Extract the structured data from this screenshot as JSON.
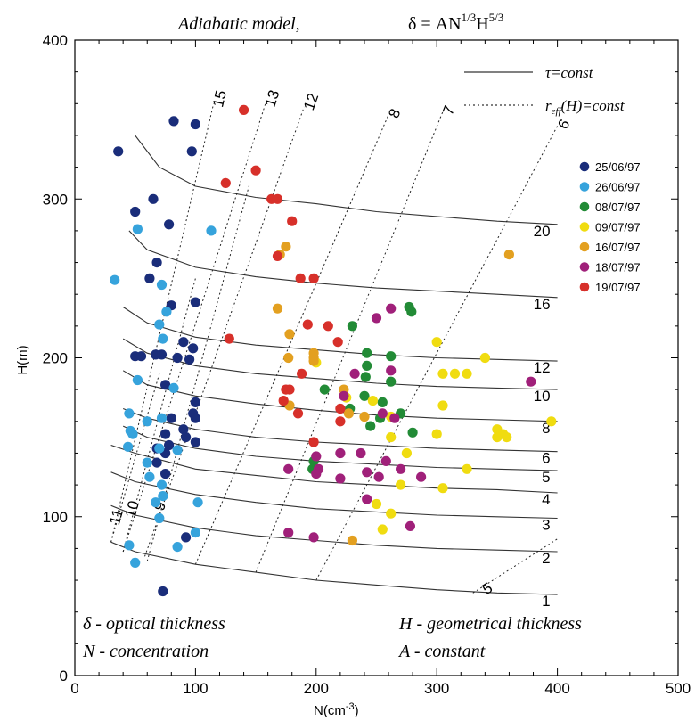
{
  "chart_data": {
    "type": "scatter",
    "title_text": "Adiabatic model,",
    "title_formula": "δ  =  AN",
    "title_exp1": "1/3",
    "title_mid": "H",
    "title_exp2": "5/3",
    "xlabel": "N(cm",
    "xlabel_sup": "-3",
    "xlabel_end": ")",
    "ylabel": "H(m)",
    "xlim": [
      0,
      500
    ],
    "ylim": [
      0,
      400
    ],
    "xticks": [
      0,
      100,
      200,
      300,
      400,
      500
    ],
    "yticks": [
      0,
      100,
      200,
      300,
      400
    ],
    "grid": false,
    "legend_position": "right",
    "line_key": {
      "solid": "τ=const",
      "dotted_pre": "r",
      "dotted_sub": "eff",
      "dotted_post": "(H)=const"
    },
    "tau_curves": [
      {
        "label": "1",
        "points": [
          [
            30,
            84
          ],
          [
            50,
            78
          ],
          [
            100,
            70
          ],
          [
            150,
            65
          ],
          [
            200,
            60
          ],
          [
            250,
            57
          ],
          [
            300,
            54
          ],
          [
            350,
            52
          ],
          [
            400,
            51
          ]
        ]
      },
      {
        "label": "2",
        "points": [
          [
            30,
            107
          ],
          [
            50,
            101
          ],
          [
            100,
            93
          ],
          [
            150,
            88
          ],
          [
            200,
            85
          ],
          [
            250,
            82
          ],
          [
            300,
            80
          ],
          [
            350,
            79
          ],
          [
            400,
            78
          ]
        ]
      },
      {
        "label": "3",
        "points": [
          [
            30,
            128
          ],
          [
            50,
            122
          ],
          [
            100,
            114
          ],
          [
            150,
            109
          ],
          [
            200,
            105
          ],
          [
            250,
            103
          ],
          [
            300,
            101
          ],
          [
            350,
            100
          ],
          [
            400,
            99
          ]
        ]
      },
      {
        "label": "4",
        "points": [
          [
            30,
            145
          ],
          [
            50,
            140
          ],
          [
            100,
            130
          ],
          [
            150,
            126
          ],
          [
            200,
            122
          ],
          [
            250,
            120
          ],
          [
            300,
            118
          ],
          [
            350,
            117
          ],
          [
            400,
            115
          ]
        ]
      },
      {
        "label": "5",
        "points": [
          [
            40,
            157
          ],
          [
            60,
            150
          ],
          [
            100,
            143
          ],
          [
            150,
            138
          ],
          [
            200,
            135
          ],
          [
            250,
            133
          ],
          [
            300,
            131
          ],
          [
            350,
            130
          ],
          [
            400,
            129
          ]
        ]
      },
      {
        "label": "6",
        "points": [
          [
            40,
            168
          ],
          [
            60,
            162
          ],
          [
            100,
            155
          ],
          [
            150,
            150
          ],
          [
            200,
            147
          ],
          [
            250,
            145
          ],
          [
            300,
            143
          ],
          [
            350,
            142
          ],
          [
            400,
            141
          ]
        ]
      },
      {
        "label": "8",
        "points": [
          [
            40,
            192
          ],
          [
            60,
            183
          ],
          [
            100,
            176
          ],
          [
            150,
            171
          ],
          [
            200,
            167
          ],
          [
            250,
            164
          ],
          [
            300,
            162
          ],
          [
            350,
            161
          ],
          [
            400,
            160
          ]
        ]
      },
      {
        "label": "10",
        "points": [
          [
            40,
            212
          ],
          [
            60,
            203
          ],
          [
            100,
            195
          ],
          [
            150,
            190
          ],
          [
            200,
            187
          ],
          [
            250,
            184
          ],
          [
            300,
            182
          ],
          [
            350,
            181
          ],
          [
            400,
            180
          ]
        ]
      },
      {
        "label": "12",
        "points": [
          [
            40,
            232
          ],
          [
            60,
            222
          ],
          [
            100,
            213
          ],
          [
            150,
            208
          ],
          [
            200,
            205
          ],
          [
            250,
            202
          ],
          [
            300,
            200
          ],
          [
            350,
            199
          ],
          [
            400,
            198
          ]
        ]
      },
      {
        "label": "16",
        "points": [
          [
            45,
            280
          ],
          [
            60,
            268
          ],
          [
            100,
            257
          ],
          [
            150,
            251
          ],
          [
            200,
            247
          ],
          [
            250,
            244
          ],
          [
            300,
            242
          ],
          [
            350,
            240
          ],
          [
            400,
            238
          ]
        ]
      },
      {
        "label": "20",
        "points": [
          [
            50,
            340
          ],
          [
            70,
            320
          ],
          [
            100,
            308
          ],
          [
            150,
            301
          ],
          [
            200,
            297
          ],
          [
            250,
            292
          ],
          [
            300,
            289
          ],
          [
            350,
            286
          ],
          [
            400,
            284
          ]
        ]
      }
    ],
    "reff_lines": [
      {
        "label": "15",
        "points": [
          [
            30,
            84
          ],
          [
            115,
            360
          ]
        ]
      },
      {
        "label": "13",
        "points": [
          [
            40,
            78
          ],
          [
            158,
            360
          ]
        ]
      },
      {
        "label": "12",
        "points": [
          [
            58,
            75
          ],
          [
            190,
            358
          ]
        ]
      },
      {
        "label": "11",
        "points": [
          [
            30,
            84
          ],
          [
            70,
            190
          ]
        ]
      },
      {
        "label": "10",
        "points": [
          [
            40,
            78
          ],
          [
            100,
            250
          ]
        ]
      },
      {
        "label": "9",
        "points": [
          [
            60,
            72
          ],
          [
            145,
            310
          ]
        ]
      },
      {
        "label": "8",
        "points": [
          [
            100,
            70
          ],
          [
            260,
            353
          ]
        ]
      },
      {
        "label": "7",
        "points": [
          [
            150,
            65
          ],
          [
            305,
            355
          ]
        ]
      },
      {
        "label": "6",
        "points": [
          [
            200,
            60
          ],
          [
            400,
            346
          ]
        ]
      },
      {
        "label": "5",
        "points": [
          [
            330,
            52
          ],
          [
            400,
            86
          ]
        ]
      }
    ],
    "series": [
      {
        "name": "25/06/97",
        "color": "#1a2d7a",
        "points": [
          [
            36,
            330
          ],
          [
            50,
            292
          ],
          [
            65,
            300
          ],
          [
            68,
            260
          ],
          [
            62,
            250
          ],
          [
            80,
            233
          ],
          [
            78,
            284
          ],
          [
            82,
            349
          ],
          [
            100,
            347
          ],
          [
            97,
            330
          ],
          [
            50,
            201
          ],
          [
            55,
            201
          ],
          [
            67,
            202
          ],
          [
            72,
            202
          ],
          [
            90,
            210
          ],
          [
            85,
            200
          ],
          [
            100,
            235
          ],
          [
            98,
            206
          ],
          [
            95,
            199
          ],
          [
            75,
            183
          ],
          [
            100,
            172
          ],
          [
            98,
            165
          ],
          [
            100,
            162
          ],
          [
            80,
            162
          ],
          [
            75,
            152
          ],
          [
            90,
            155
          ],
          [
            100,
            147
          ],
          [
            92,
            150
          ],
          [
            78,
            145
          ],
          [
            68,
            143
          ],
          [
            75,
            140
          ],
          [
            68,
            134
          ],
          [
            75,
            127
          ],
          [
            92,
            87
          ],
          [
            73,
            53
          ]
        ]
      },
      {
        "name": "26/06/97",
        "color": "#36a3dc",
        "points": [
          [
            52,
            281
          ],
          [
            113,
            280
          ],
          [
            33,
            249
          ],
          [
            72,
            246
          ],
          [
            76,
            229
          ],
          [
            70,
            221
          ],
          [
            73,
            212
          ],
          [
            52,
            186
          ],
          [
            82,
            181
          ],
          [
            45,
            165
          ],
          [
            72,
            162
          ],
          [
            60,
            160
          ],
          [
            46,
            154
          ],
          [
            48,
            152
          ],
          [
            70,
            143
          ],
          [
            44,
            144
          ],
          [
            85,
            142
          ],
          [
            60,
            134
          ],
          [
            72,
            120
          ],
          [
            67,
            109
          ],
          [
            73,
            113
          ],
          [
            62,
            125
          ],
          [
            70,
            99
          ],
          [
            100,
            90
          ],
          [
            85,
            81
          ],
          [
            45,
            82
          ],
          [
            50,
            71
          ],
          [
            102,
            109
          ]
        ]
      },
      {
        "name": "08/07/97",
        "color": "#228b36",
        "points": [
          [
            230,
            220
          ],
          [
            277,
            232
          ],
          [
            279,
            229
          ],
          [
            242,
            203
          ],
          [
            242,
            195
          ],
          [
            262,
            201
          ],
          [
            241,
            188
          ],
          [
            262,
            185
          ],
          [
            207,
            180
          ],
          [
            228,
            168
          ],
          [
            240,
            176
          ],
          [
            255,
            172
          ],
          [
            270,
            165
          ],
          [
            253,
            162
          ],
          [
            245,
            157
          ],
          [
            280,
            153
          ],
          [
            198,
            135
          ],
          [
            197,
            130
          ]
        ]
      },
      {
        "name": "09/07/97",
        "color": "#f0dc10",
        "points": [
          [
            300,
            210
          ],
          [
            340,
            200
          ],
          [
            305,
            190
          ],
          [
            315,
            190
          ],
          [
            325,
            190
          ],
          [
            305,
            170
          ],
          [
            200,
            197
          ],
          [
            225,
            175
          ],
          [
            247,
            173
          ],
          [
            262,
            163
          ],
          [
            262,
            150
          ],
          [
            275,
            140
          ],
          [
            300,
            152
          ],
          [
            350,
            155
          ],
          [
            355,
            152
          ],
          [
            350,
            150
          ],
          [
            358,
            150
          ],
          [
            395,
            160
          ],
          [
            325,
            130
          ],
          [
            305,
            118
          ],
          [
            270,
            120
          ],
          [
            250,
            108
          ],
          [
            262,
            102
          ],
          [
            255,
            92
          ]
        ]
      },
      {
        "name": "16/07/97",
        "color": "#e3a020",
        "points": [
          [
            360,
            265
          ],
          [
            175,
            270
          ],
          [
            170,
            265
          ],
          [
            168,
            231
          ],
          [
            178,
            215
          ],
          [
            198,
            203
          ],
          [
            198,
            200
          ],
          [
            198,
            198
          ],
          [
            177,
            200
          ],
          [
            223,
            180
          ],
          [
            227,
            165
          ],
          [
            240,
            163
          ],
          [
            178,
            170
          ],
          [
            230,
            85
          ]
        ]
      },
      {
        "name": "18/07/97",
        "color": "#a0207a",
        "points": [
          [
            262,
            231
          ],
          [
            250,
            225
          ],
          [
            232,
            190
          ],
          [
            262,
            192
          ],
          [
            378,
            185
          ],
          [
            255,
            165
          ],
          [
            265,
            162
          ],
          [
            223,
            176
          ],
          [
            200,
            138
          ],
          [
            220,
            140
          ],
          [
            237,
            140
          ],
          [
            258,
            135
          ],
          [
            177,
            130
          ],
          [
            200,
            127
          ],
          [
            242,
            128
          ],
          [
            252,
            125
          ],
          [
            270,
            130
          ],
          [
            287,
            125
          ],
          [
            202,
            130
          ],
          [
            220,
            124
          ],
          [
            242,
            111
          ],
          [
            177,
            90
          ],
          [
            198,
            87
          ],
          [
            278,
            94
          ]
        ]
      },
      {
        "name": "19/07/97",
        "color": "#d7302a",
        "points": [
          [
            140,
            356
          ],
          [
            150,
            318
          ],
          [
            125,
            310
          ],
          [
            163,
            300
          ],
          [
            168,
            300
          ],
          [
            180,
            286
          ],
          [
            168,
            264
          ],
          [
            187,
            250
          ],
          [
            198,
            250
          ],
          [
            193,
            221
          ],
          [
            210,
            220
          ],
          [
            128,
            212
          ],
          [
            218,
            210
          ],
          [
            178,
            180
          ],
          [
            188,
            190
          ],
          [
            173,
            173
          ],
          [
            185,
            165
          ],
          [
            175,
            180
          ],
          [
            198,
            147
          ],
          [
            220,
            160
          ],
          [
            220,
            168
          ]
        ]
      }
    ],
    "notes": [
      {
        "sym": "δ",
        "text": " - optical thickness"
      },
      {
        "sym": "N",
        "text": " - concentration"
      },
      {
        "sym": "H",
        "text": " - geometrical thickness"
      },
      {
        "sym": "A",
        "text": " - constant"
      }
    ]
  }
}
